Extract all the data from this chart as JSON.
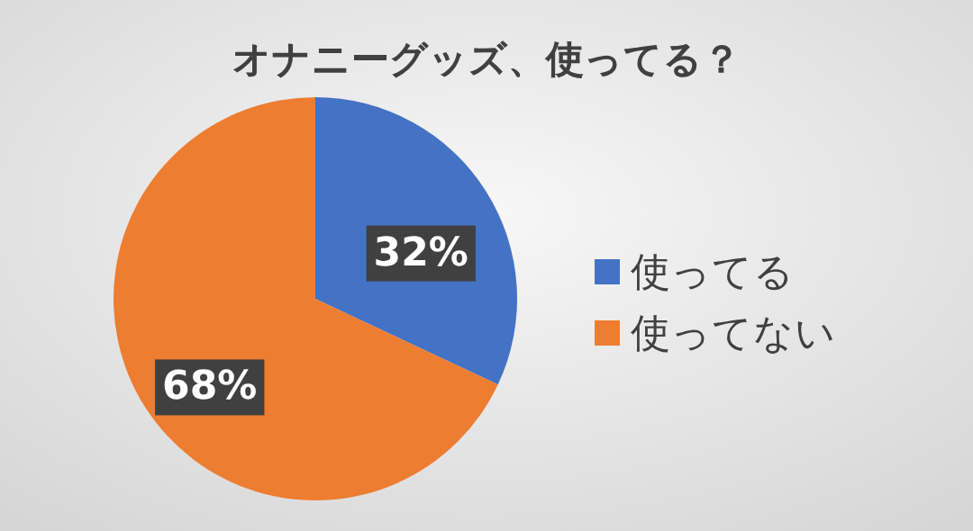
{
  "chart_data": {
    "type": "pie",
    "title": "オナニーグッズ、使ってる？",
    "categories": [
      "使ってる",
      "使ってない"
    ],
    "values": [
      32,
      68
    ],
    "colors": [
      "#4472c4",
      "#ed7d31"
    ],
    "value_labels": [
      "32%",
      "68%"
    ],
    "legend": "right"
  }
}
